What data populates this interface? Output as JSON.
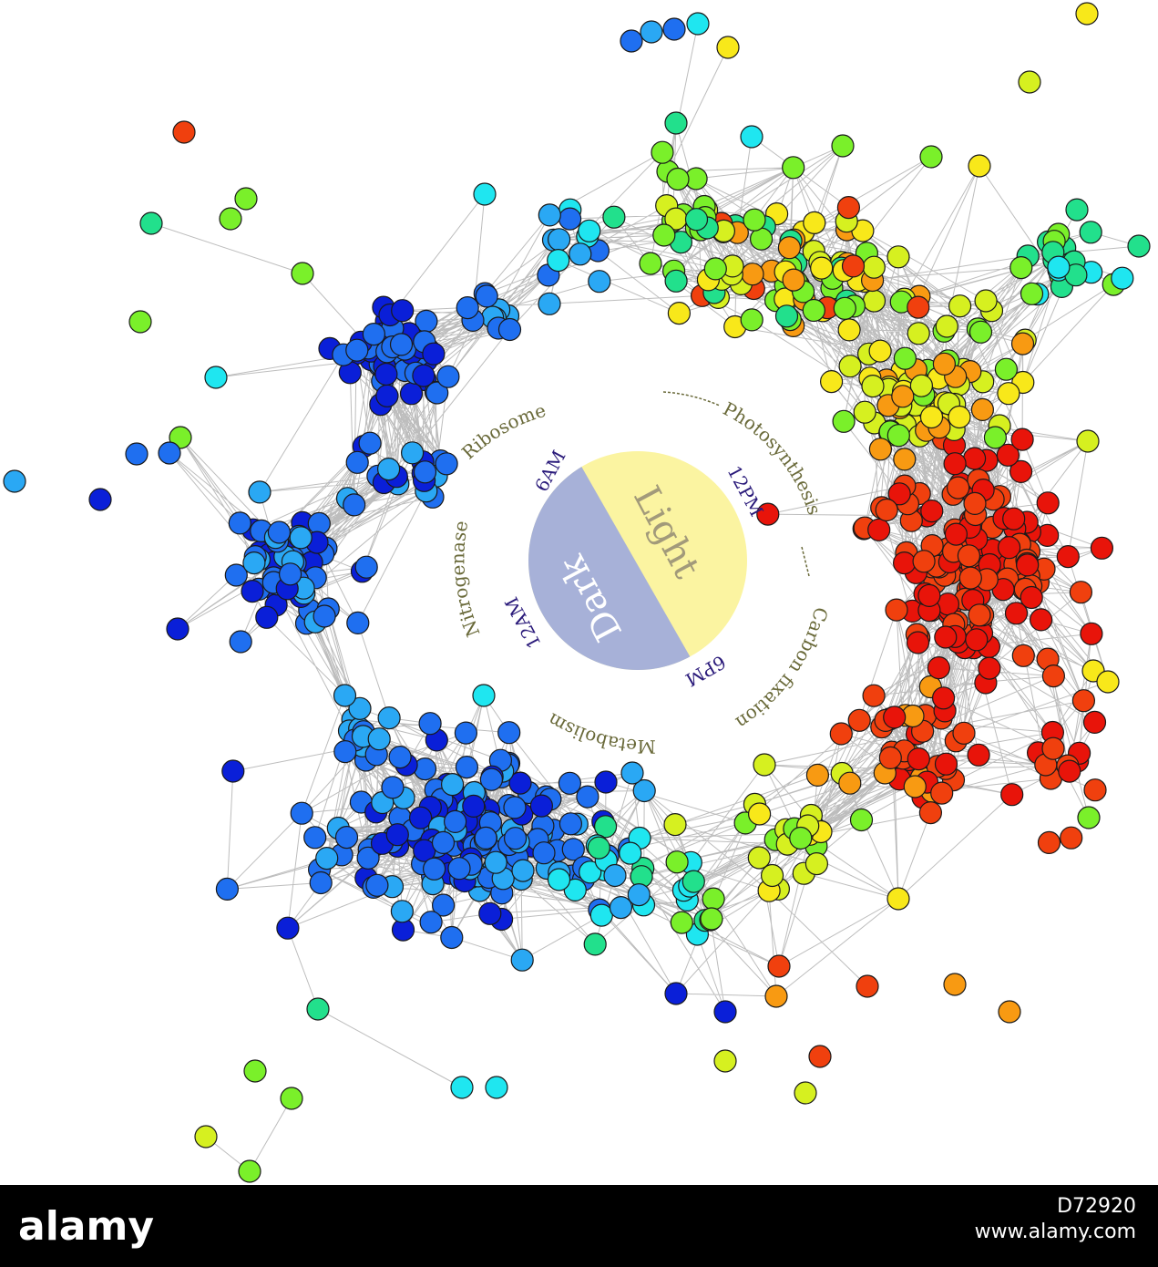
{
  "center": {
    "light_label": "Light",
    "dark_label": "Dark",
    "light_color": "#fbf4a1",
    "dark_color": "#a7b1d8",
    "light_text_color": "#a29a7a",
    "dark_text_color": "#ffffff"
  },
  "times": [
    {
      "key": "6am",
      "label": "6AM"
    },
    {
      "key": "12pm",
      "label": "12PM"
    },
    {
      "key": "6pm",
      "label": "6PM"
    },
    {
      "key": "12am",
      "label": "12AM"
    }
  ],
  "processes": [
    {
      "key": "photosynthesis",
      "label": "Photosynthesis"
    },
    {
      "key": "carbon-fixation",
      "label": "Carbon fixation"
    },
    {
      "key": "metabolism",
      "label": "Metabolism"
    },
    {
      "key": "nitrogenase",
      "label": "Nitrogenase"
    },
    {
      "key": "ribosome",
      "label": "Ribosome"
    }
  ],
  "colors": {
    "time_text": "#2a1a7a",
    "process_text": "#6a6a3a",
    "edge": "#bdbdbd",
    "node_stroke": "#1a1a1a"
  },
  "node_palette": [
    "#0a1fd8",
    "#1f6ff0",
    "#2aa8f4",
    "#1fe6f0",
    "#22e08c",
    "#7af02a",
    "#d6f020",
    "#f8e81a",
    "#f89a12",
    "#f0400e",
    "#e8140a"
  ],
  "watermark": {
    "brand": "alamy",
    "image_id": "D72920",
    "url": "www.alamy.com"
  }
}
